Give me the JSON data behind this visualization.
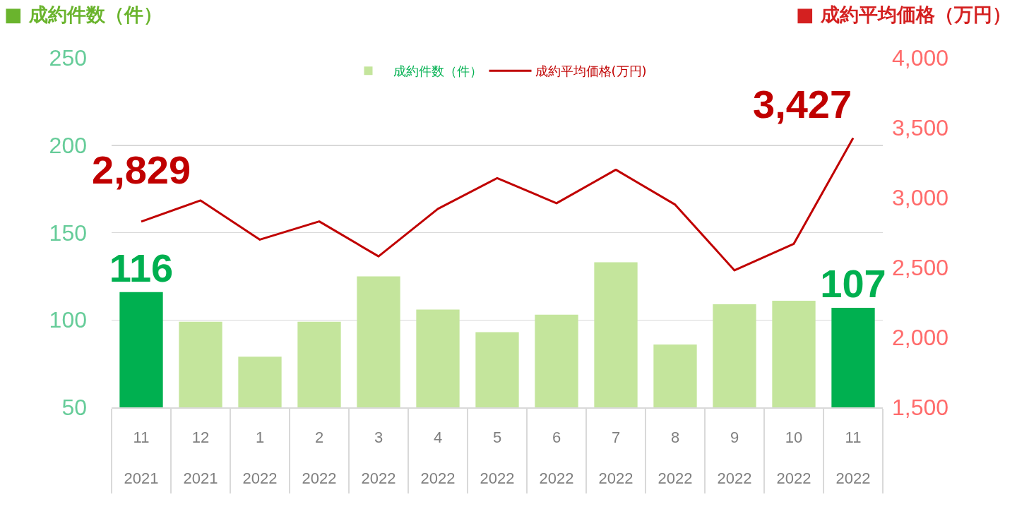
{
  "chart_data": {
    "type": "bar",
    "ylabel": "■ 成約件数（件）",
    "y2label": "■ 成約平均価格（万円）",
    "categories": [
      "11\n2021",
      "12\n2021",
      "1\n2022",
      "2\n2022",
      "3\n2022",
      "4\n2022",
      "5\n2022",
      "6\n2022",
      "7\n2022",
      "8\n2022",
      "9\n2022",
      "10\n2022",
      "11\n2022"
    ],
    "series": [
      {
        "name": "成約件数（件）",
        "color": "#c4e59c",
        "colors": [
          "#00b050",
          "#c4e59c",
          "#c4e59c",
          "#c4e59c",
          "#c4e59c",
          "#c4e59c",
          "#c4e59c",
          "#c4e59c",
          "#c4e59c",
          "#c4e59c",
          "#c4e59c",
          "#c4e59c",
          "#00b050"
        ],
        "values": [
          116,
          99,
          79,
          99,
          125,
          106,
          93,
          103,
          133,
          86,
          109,
          111,
          107
        ],
        "value_labels": [
          "116",
          null,
          null,
          null,
          null,
          null,
          null,
          null,
          null,
          null,
          null,
          null,
          "107"
        ]
      },
      {
        "name": "成約平均価格(万円)",
        "type": "line",
        "axis": "y2",
        "color": "#c00000",
        "values": [
          2829,
          2980,
          2700,
          2830,
          2580,
          2920,
          3140,
          2960,
          3200,
          2950,
          2480,
          2670,
          3427
        ],
        "value_labels": [
          "2,829",
          null,
          null,
          null,
          null,
          null,
          null,
          null,
          null,
          null,
          null,
          null,
          "3,427"
        ]
      }
    ],
    "ylim": [
      50,
      250
    ],
    "yticks": [
      50,
      100,
      150,
      200,
      250
    ],
    "y2lim": [
      1500,
      4000
    ],
    "y2ticks": [
      {
        "value": 1500,
        "label": "1,500"
      },
      {
        "value": 2000,
        "label": "2,000"
      },
      {
        "value": 2500,
        "label": "2,500"
      },
      {
        "value": 3000,
        "label": "3,000"
      },
      {
        "value": 3500,
        "label": "3,500"
      },
      {
        "value": 4000,
        "label": "4,000"
      }
    ],
    "grid": "y",
    "legend": "top"
  }
}
